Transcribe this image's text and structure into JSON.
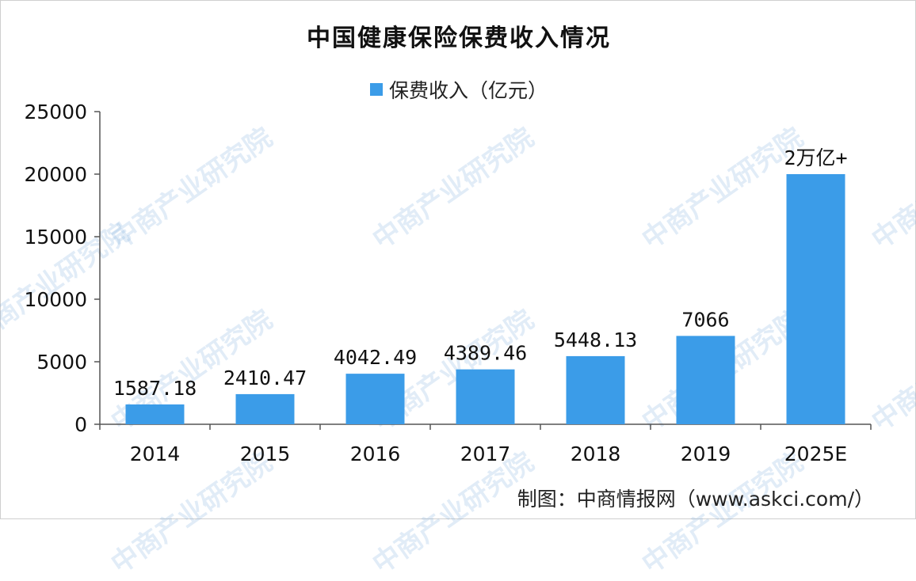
{
  "colors": {
    "bar": "#3b9ce8",
    "axis": "#555555",
    "text": "#111111",
    "watermark": "#7aaedc"
  },
  "watermark": {
    "text": "中商产业研究院"
  },
  "source": "制图：中商情报网（www.askci.com/）",
  "chart_data": {
    "type": "bar",
    "title": "中国健康保险保费收入情况",
    "xlabel": "",
    "ylabel": "",
    "categories": [
      "2014",
      "2015",
      "2016",
      "2017",
      "2018",
      "2019",
      "2025E"
    ],
    "series": [
      {
        "name": "保费收入（亿元）",
        "values": [
          1587.18,
          2410.47,
          4042.49,
          4389.46,
          5448.13,
          7066,
          20000
        ]
      }
    ],
    "data_labels": [
      "1587.18",
      "2410.47",
      "4042.49",
      "4389.46",
      "5448.13",
      "7066",
      "2万亿+"
    ],
    "ylim": [
      0,
      25000
    ],
    "yticks": [
      "0",
      "5000",
      "10000",
      "15000",
      "20000",
      "25000"
    ],
    "grid": false,
    "legend": "top-center"
  }
}
